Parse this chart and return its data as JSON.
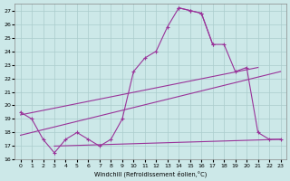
{
  "xlabel": "Windchill (Refroidissement éolien,°C)",
  "line_color": "#993399",
  "bg_color": "#cce8e8",
  "grid_color": "#aacccc",
  "ylim": [
    16,
    27.5
  ],
  "xlim": [
    -0.5,
    23.5
  ],
  "yticks": [
    16,
    17,
    18,
    19,
    20,
    21,
    22,
    23,
    24,
    25,
    26,
    27
  ],
  "xticks": [
    0,
    1,
    2,
    3,
    4,
    5,
    6,
    7,
    8,
    9,
    10,
    11,
    12,
    13,
    14,
    15,
    16,
    17,
    18,
    19,
    20,
    21,
    22,
    23
  ],
  "line1_x": [
    0,
    1,
    2,
    3,
    4,
    5,
    6,
    7,
    8,
    9,
    10,
    11,
    12,
    13,
    14,
    15,
    16,
    17
  ],
  "line1_y": [
    19.5,
    19.0,
    17.5,
    16.5,
    17.5,
    18.0,
    17.5,
    17.0,
    17.5,
    19.0,
    22.5,
    23.5,
    24.0,
    25.8,
    27.2,
    27.0,
    26.8,
    24.5
  ],
  "line2_x": [
    14,
    15,
    16,
    17,
    18,
    19,
    20,
    21,
    22,
    23
  ],
  "line2_y": [
    27.2,
    27.0,
    26.8,
    24.5,
    24.5,
    22.5,
    22.8,
    18.0,
    17.5,
    17.5
  ],
  "line3_x": [
    0,
    21
  ],
  "line3_y": [
    19.3,
    22.8
  ],
  "line4_x": [
    0,
    23
  ],
  "line4_y": [
    17.8,
    22.5
  ],
  "line5_x": [
    3,
    23
  ],
  "line5_y": [
    17.0,
    17.5
  ]
}
